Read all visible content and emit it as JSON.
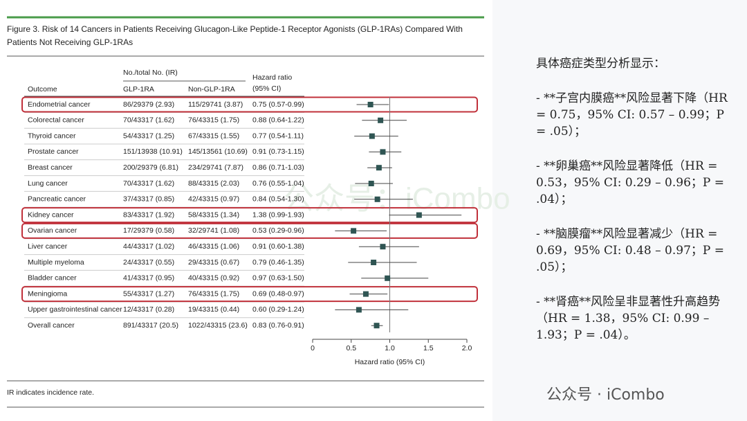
{
  "figure": {
    "title_lines": [
      "Figure 3. Risk of 14 Cancers in Patients Receiving Glucagon-Like Peptide-1 Receptor Agonists (GLP-1RAs) Compared With",
      "Patients Not Receiving GLP-1RAs"
    ],
    "footnote": "IR indicates incidence rate."
  },
  "table": {
    "headers": {
      "outcome": "Outcome",
      "group": "No./total No. (IR)",
      "glp": "GLP-1RA",
      "non": "Non-GLP-1RA",
      "hr": [
        "Hazard ratio",
        "(95% CI)"
      ]
    },
    "rows": [
      {
        "outcome": "Endometrial cancer",
        "glp": "86/29379 (2.93)",
        "non": "115/29741 (3.87)",
        "hr": "0.75 (0.57-0.99)",
        "highlight": true
      },
      {
        "outcome": "Colorectal cancer",
        "glp": "70/43317 (1.62)",
        "non": "76/43315 (1.75)",
        "hr": "0.88 (0.64-1.22)",
        "highlight": false
      },
      {
        "outcome": "Thyroid cancer",
        "glp": "54/43317 (1.25)",
        "non": "67/43315 (1.55)",
        "hr": "0.77 (0.54-1.11)",
        "highlight": false
      },
      {
        "outcome": "Prostate cancer",
        "glp": "151/13938 (10.91)",
        "non": "145/13561 (10.69)",
        "hr": "0.91 (0.73-1.15)",
        "highlight": false
      },
      {
        "outcome": "Breast cancer",
        "glp": "200/29379 (6.81)",
        "non": "234/29741 (7.87)",
        "hr": "0.86 (0.71-1.03)",
        "highlight": false
      },
      {
        "outcome": "Lung cancer",
        "glp": "70/43317 (1.62)",
        "non": "88/43315 (2.03)",
        "hr": "0.76 (0.55-1.04)",
        "highlight": false
      },
      {
        "outcome": "Pancreatic cancer",
        "glp": "37/43317 (0.85)",
        "non": "42/43315 (0.97)",
        "hr": "0.84 (0.54-1.30)",
        "highlight": false
      },
      {
        "outcome": "Kidney cancer",
        "glp": "83/43317 (1.92)",
        "non": "58/43315 (1.34)",
        "hr": "1.38 (0.99-1.93)",
        "highlight": true
      },
      {
        "outcome": "Ovarian cancer",
        "glp": "17/29379 (0.58)",
        "non": "32/29741 (1.08)",
        "hr": "0.53 (0.29-0.96)",
        "highlight": true
      },
      {
        "outcome": "Liver cancer",
        "glp": "44/43317 (1.02)",
        "non": "46/43315 (1.06)",
        "hr": "0.91 (0.60-1.38)",
        "highlight": false
      },
      {
        "outcome": "Multiple myeloma",
        "glp": "24/43317 (0.55)",
        "non": "29/43315 (0.67)",
        "hr": "0.79 (0.46-1.35)",
        "highlight": false
      },
      {
        "outcome": "Bladder cancer",
        "glp": "41/43317 (0.95)",
        "non": "40/43315 (0.92)",
        "hr": "0.97 (0.63-1.50)",
        "highlight": false
      },
      {
        "outcome": "Meningioma",
        "glp": "55/43317 (1.27)",
        "non": "76/43315 (1.75)",
        "hr": "0.69 (0.48-0.97)",
        "highlight": true
      },
      {
        "outcome": "Upper gastrointestinal cancer",
        "glp": "12/43317 (0.28)",
        "non": "19/43315 (0.44)",
        "hr": "0.60 (0.29-1.24)",
        "highlight": false
      },
      {
        "outcome": "Overall cancer",
        "glp": "891/43317 (20.5)",
        "non": "1022/43315 (23.6)",
        "hr": "0.83 (0.76-0.91)",
        "highlight": false
      }
    ]
  },
  "chart_data": {
    "type": "forest",
    "xlabel": "Hazard ratio (95% CI)",
    "xlim": [
      0,
      2
    ],
    "xticks": [
      0,
      0.5,
      {
        "value": 1,
        "label": "1.0"
      },
      1.5,
      {
        "value": 2,
        "label": "2.0"
      }
    ],
    "reference": 1,
    "color": "#2f5553",
    "values": [
      0.75,
      0.88,
      0.77,
      0.91,
      0.86,
      0.76,
      0.84,
      1.38,
      0.53,
      0.91,
      0.79,
      0.97,
      0.69,
      0.6,
      0.83
    ],
    "lower": [
      0.57,
      0.64,
      0.54,
      0.73,
      0.71,
      0.55,
      0.54,
      0.99,
      0.29,
      0.6,
      0.46,
      0.63,
      0.48,
      0.29,
      0.76
    ],
    "upper": [
      0.99,
      1.22,
      1.11,
      1.15,
      1.03,
      1.04,
      1.3,
      1.93,
      0.96,
      1.38,
      1.35,
      1.5,
      0.97,
      1.24,
      0.91
    ]
  },
  "notes": {
    "title": "具体癌症类型分析显示：",
    "items": [
      "- **子宫内膜癌**风险显著下降（HR = 0.75，95% CI: 0.57 – 0.99；P = .05）；",
      "- **卵巢癌**风险显著降低（HR = 0.53，95% CI: 0.29 – 0.96；P = .04）；",
      "- **脑膜瘤**风险显著减少（HR = 0.69，95% CI: 0.48 – 0.97；P = .05）；",
      "- **肾癌**风险呈非显著性升高趋势（HR = 1.38，95% CI: 0.99 – 1.93；P = .04）。"
    ]
  },
  "watermarks": {
    "center": "公众号：iCombo",
    "corner": "公众号 · iCombo"
  }
}
